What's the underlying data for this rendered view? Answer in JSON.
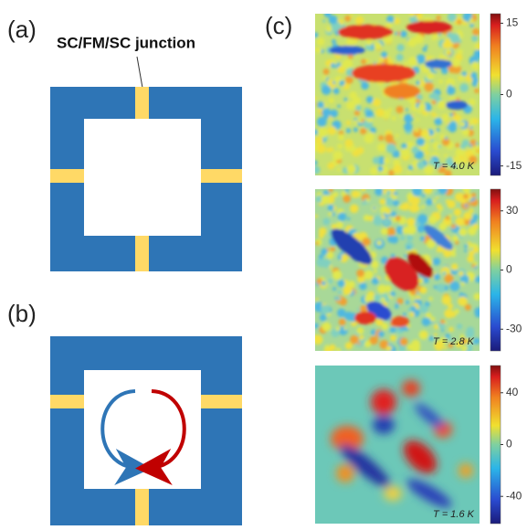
{
  "panels": [
    {
      "label": "(a)",
      "annotation": "SC/FM/SC junction"
    },
    {
      "label": "(b)"
    },
    {
      "label": "(c)",
      "maps": [
        {
          "temperature": "T = 4.0 K",
          "colorbar_lim": [
            -17,
            17
          ],
          "colorbar_ticks": [
            15,
            0,
            -15
          ]
        },
        {
          "temperature": "T = 2.8 K",
          "colorbar_lim": [
            -41,
            41
          ],
          "colorbar_ticks": [
            30,
            0,
            -30
          ]
        },
        {
          "temperature": "T = 1.6 K",
          "colorbar_lim": [
            -61,
            61
          ],
          "colorbar_ticks": [
            40,
            0,
            -40
          ]
        }
      ]
    }
  ]
}
